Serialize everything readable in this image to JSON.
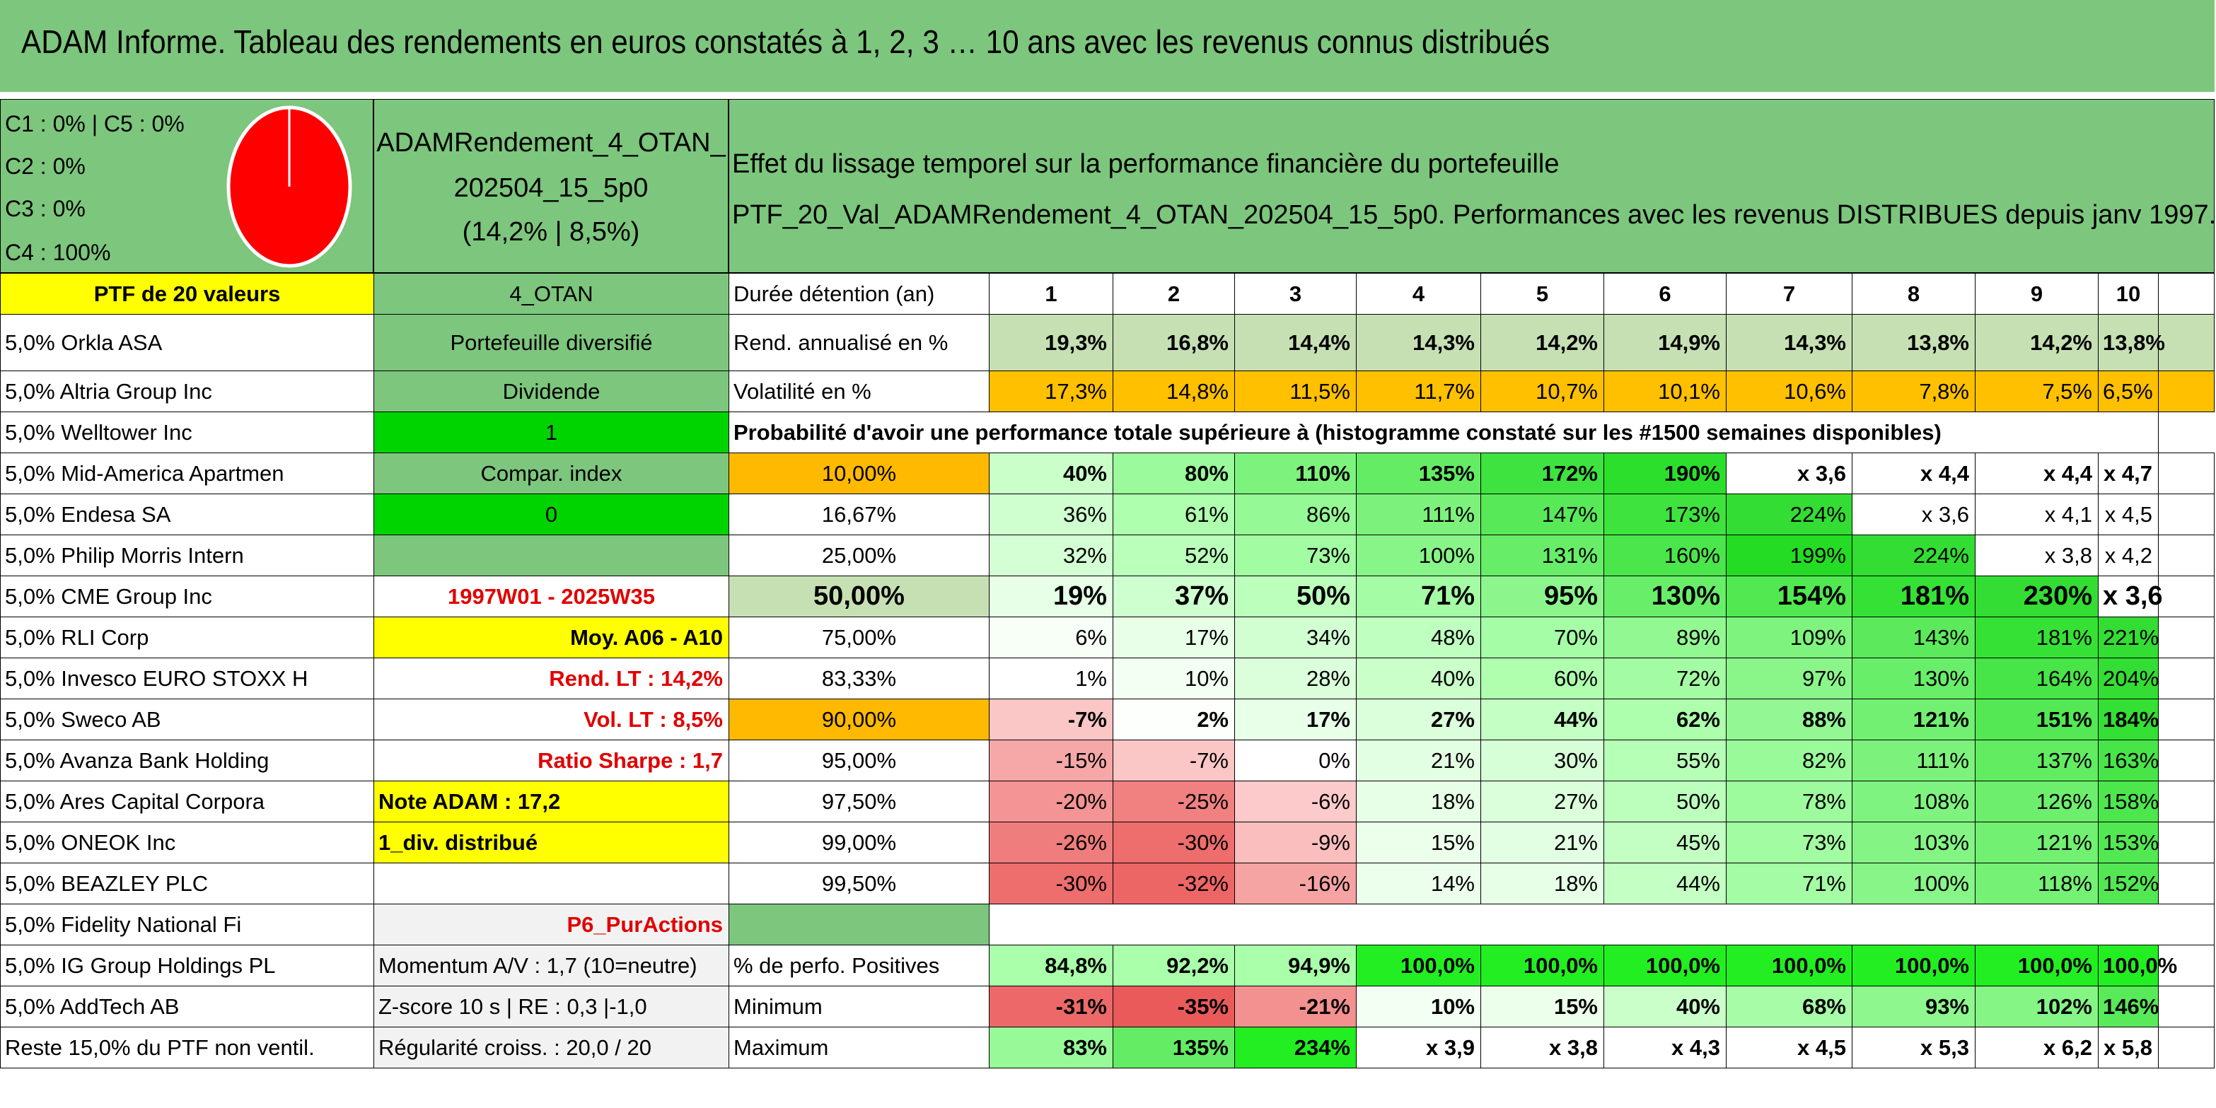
{
  "title": "ADAM Informe. Tableau des rendements en euros constatés à 1, 2, 3 … 10 ans avec les revenus connus distribués",
  "classes": [
    "C1 : 0% | C5 : 0%",
    "C2 : 0%",
    "C3 : 0%",
    "C4 : 100%"
  ],
  "pie": {
    "color": "#ff0000",
    "c4_share": 1.0
  },
  "portfolio": {
    "name_line1": "ADAMRendement_4_OTAN_",
    "name_line2": "202504_15_5p0",
    "perf": "(14,2% | 8,5%)"
  },
  "effect": {
    "line1": "Effet du lissage temporel sur la performance financière du portefeuille",
    "line2": "PTF_20_Val_ADAMRendement_4_OTAN_202504_15_5p0. Performances avec les revenus DISTRIBUES depuis janv 1997."
  },
  "col_a": {
    "header": "PTF de 20 valeurs",
    "holdings": [
      "5,0% Orkla ASA",
      "5,0% Altria Group Inc",
      "5,0% Welltower Inc",
      "5,0% Mid-America Apartmen",
      "5,0% Endesa SA",
      "5,0% Philip Morris Intern",
      "5,0% CME Group Inc",
      "5,0% RLI Corp",
      "5,0% Invesco EURO STOXX H",
      "5,0% Sweco AB",
      "5,0% Avanza Bank Holding",
      "5,0% Ares Capital Corpora",
      "5,0% ONEOK Inc",
      "5,0% BEAZLEY PLC",
      "5,0% Fidelity National Fi",
      "5,0% IG Group Holdings PL",
      "5,0% AddTech AB",
      "Reste 15,0% du PTF non ventil."
    ]
  },
  "col_b": [
    "4_OTAN",
    "Portefeuille diversifié",
    "Dividende",
    "1",
    "Compar. index",
    "0",
    "",
    "1997W01 - 2025W35",
    "Moy. A06 - A10",
    "Rend. LT : 14,2%",
    "Vol. LT : 8,5%",
    "Ratio Sharpe : 1,7",
    "Note ADAM : 17,2",
    "1_div. distribué",
    "",
    "P6_PurActions",
    "Momentum A/V : 1,7 (10=neutre)",
    "Z-score 10 s | RE : 0,3 |-1,0",
    "Régularité croiss. : 20,0 / 20"
  ],
  "years_label": "Durée détention (an)",
  "years": [
    "1",
    "2",
    "3",
    "4",
    "5",
    "6",
    "7",
    "8",
    "9",
    "10"
  ],
  "rend_label": "Rend. annualisé en %",
  "rend": [
    "19,3%",
    "16,8%",
    "14,4%",
    "14,3%",
    "14,2%",
    "14,9%",
    "14,3%",
    "13,8%",
    "14,2%",
    "13,8%"
  ],
  "vol_label": "Volatilité en %",
  "vol": [
    "17,3%",
    "14,8%",
    "11,5%",
    "11,7%",
    "10,7%",
    "10,1%",
    "10,6%",
    "7,8%",
    "7,5%",
    "6,5%"
  ],
  "prob_title": "Probabilité d'avoir une performance totale supérieure à (histogramme constaté sur les #1500 semaines disponibles)",
  "prob_rows": [
    {
      "p": "10,00%",
      "v": [
        "40%",
        "80%",
        "110%",
        "135%",
        "172%",
        "190%",
        "x 3,6",
        "x 4,4",
        "x 4,4",
        "x 4,7"
      ]
    },
    {
      "p": "16,67%",
      "v": [
        "36%",
        "61%",
        "86%",
        "111%",
        "147%",
        "173%",
        "224%",
        "x 3,6",
        "x 4,1",
        "x 4,5"
      ]
    },
    {
      "p": "25,00%",
      "v": [
        "32%",
        "52%",
        "73%",
        "100%",
        "131%",
        "160%",
        "199%",
        "224%",
        "x 3,8",
        "x 4,2"
      ]
    },
    {
      "p": "50,00%",
      "v": [
        "19%",
        "37%",
        "50%",
        "71%",
        "95%",
        "130%",
        "154%",
        "181%",
        "230%",
        "x 3,6"
      ]
    },
    {
      "p": "75,00%",
      "v": [
        "6%",
        "17%",
        "34%",
        "48%",
        "70%",
        "89%",
        "109%",
        "143%",
        "181%",
        "221%"
      ]
    },
    {
      "p": "83,33%",
      "v": [
        "1%",
        "10%",
        "28%",
        "40%",
        "60%",
        "72%",
        "97%",
        "130%",
        "164%",
        "204%"
      ]
    },
    {
      "p": "90,00%",
      "v": [
        "-7%",
        "2%",
        "17%",
        "27%",
        "44%",
        "62%",
        "88%",
        "121%",
        "151%",
        "184%"
      ]
    },
    {
      "p": "95,00%",
      "v": [
        "-15%",
        "-7%",
        "0%",
        "21%",
        "30%",
        "55%",
        "82%",
        "111%",
        "137%",
        "163%"
      ]
    },
    {
      "p": "97,50%",
      "v": [
        "-20%",
        "-25%",
        "-6%",
        "18%",
        "27%",
        "50%",
        "78%",
        "108%",
        "126%",
        "158%"
      ]
    },
    {
      "p": "99,00%",
      "v": [
        "-26%",
        "-30%",
        "-9%",
        "15%",
        "21%",
        "45%",
        "73%",
        "103%",
        "121%",
        "153%"
      ]
    },
    {
      "p": "99,50%",
      "v": [
        "-30%",
        "-32%",
        "-16%",
        "14%",
        "18%",
        "44%",
        "71%",
        "100%",
        "118%",
        "152%"
      ]
    }
  ],
  "pos_label": "% de perfo. Positives",
  "pos": [
    "84,8%",
    "92,2%",
    "94,9%",
    "100,0%",
    "100,0%",
    "100,0%",
    "100,0%",
    "100,0%",
    "100,0%",
    "100,0%"
  ],
  "min_label": "Minimum",
  "min": [
    "-31%",
    "-35%",
    "-21%",
    "10%",
    "15%",
    "40%",
    "68%",
    "93%",
    "102%",
    "146%"
  ],
  "max_label": "Maximum",
  "max": [
    "83%",
    "135%",
    "234%",
    "x 3,9",
    "x 3,8",
    "x 4,3",
    "x 4,5",
    "x 5,3",
    "x 6,2",
    "x 5,8"
  ]
}
